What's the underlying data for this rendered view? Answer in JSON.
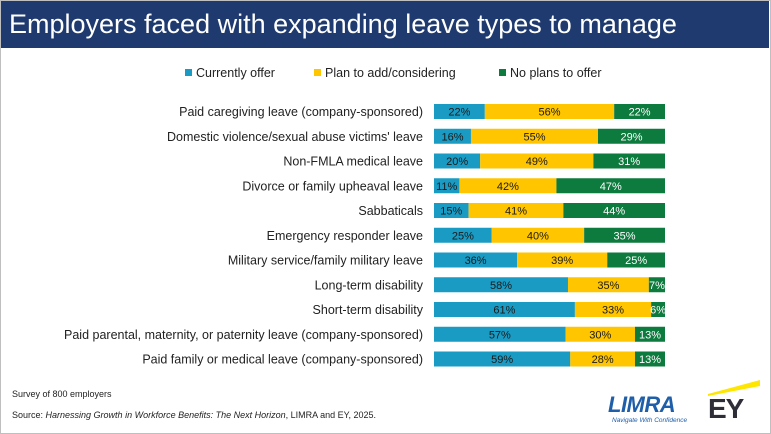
{
  "title": "Employers faced with expanding leave types to manage",
  "colors": {
    "title_bg": "#1f3a6e",
    "currently_offer": "#1a9bc3",
    "plan_to_add": "#ffc600",
    "no_plans": "#0d7a3e"
  },
  "chart_data": {
    "type": "bar",
    "orientation": "horizontal",
    "stacked": true,
    "normalized_percent": true,
    "legend_position": "top",
    "grid": false,
    "categories": [
      "Paid caregiving leave (company-sponsored)",
      "Domestic violence/sexual abuse victims' leave",
      "Non-FMLA medical leave",
      "Divorce or family upheaval leave",
      "Sabbaticals",
      "Emergency responder leave",
      "Military service/family military leave",
      "Long-term disability",
      "Short-term disability",
      "Paid parental, maternity, or paternity leave (company-sponsored)",
      "Paid family or medical leave (company-sponsored)"
    ],
    "series": [
      {
        "name": "Currently offer",
        "color": "#1a9bc3",
        "values": [
          22,
          16,
          20,
          11,
          15,
          25,
          36,
          58,
          61,
          57,
          59
        ]
      },
      {
        "name": "Plan to add/considering",
        "color": "#ffc600",
        "values": [
          56,
          55,
          49,
          42,
          41,
          40,
          39,
          35,
          33,
          30,
          28
        ]
      },
      {
        "name": "No plans to offer",
        "color": "#0d7a3e",
        "values": [
          22,
          29,
          31,
          47,
          44,
          35,
          25,
          7,
          6,
          13,
          13
        ]
      }
    ],
    "data_labels": [
      [
        "22%",
        "16%",
        "20%",
        "11%",
        "15%",
        "25%",
        "36%",
        "58%",
        "61%",
        "57%",
        "59%"
      ],
      [
        "56%",
        "55%",
        "49%",
        "42%",
        "41%",
        "40%",
        "39%",
        "35%",
        "33%",
        "30%",
        "28%"
      ],
      [
        "22%",
        "29%",
        "31%",
        "47%",
        "44%",
        "35%",
        "25%",
        "7%",
        "6%",
        "13%",
        "13%"
      ]
    ],
    "label_colors": [
      "#1a1a1a",
      "#1a1a1a",
      "#ffffff"
    ]
  },
  "footnotes": {
    "survey": "Survey of 800 employers",
    "source_prefix": "Source: ",
    "source_title": "Harnessing Growth in Workforce Benefits: The Next Horizon",
    "source_suffix": ", LIMRA and EY, 2025."
  },
  "logos": {
    "limra": {
      "word": "LIMRA",
      "tagline": "Navigate With Confidence"
    },
    "ey": {
      "word": "EY"
    }
  }
}
